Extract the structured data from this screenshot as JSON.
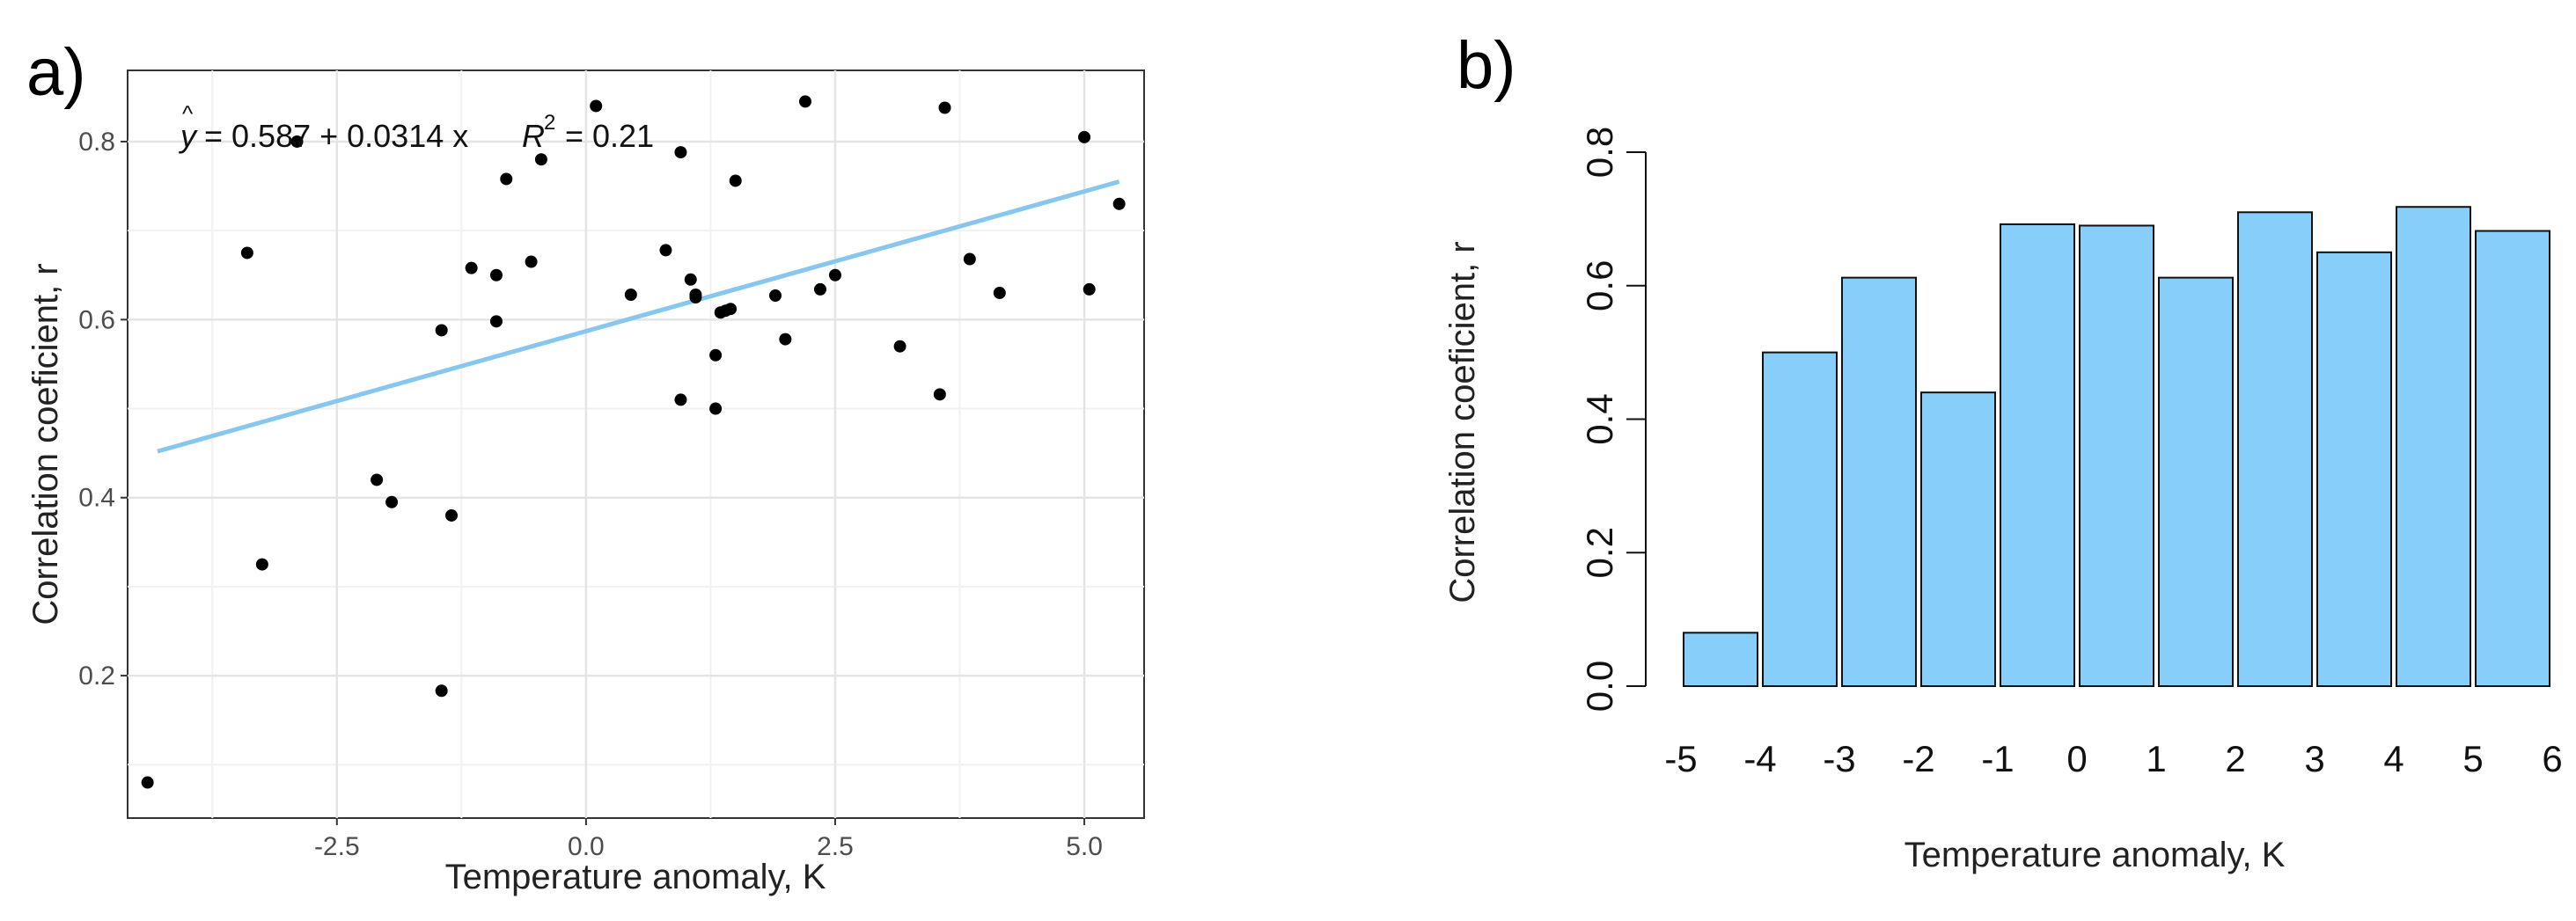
{
  "chart_data": [
    {
      "panel_label": "a)",
      "type": "scatter",
      "xlabel": "Temperature anomaly, K",
      "ylabel": "Correlation coeficient, r",
      "xlim": [
        -4.6,
        5.6
      ],
      "ylim": [
        0.04,
        0.88
      ],
      "xticks": [
        -2.5,
        0.0,
        2.5,
        5.0
      ],
      "xtick_labels": [
        "-2.5",
        "0.0",
        "2.5",
        "5.0"
      ],
      "yticks": [
        0.2,
        0.4,
        0.6,
        0.8
      ],
      "ytick_labels": [
        "0.2",
        "0.4",
        "0.6",
        "0.8"
      ],
      "grid": true,
      "equation": {
        "yhat": "y",
        "rhs": "= 0.587 + 0.0314 x",
        "r2_label": "R",
        "r2_exp": "2",
        "r2_value": "= 0.21"
      },
      "fit_line": {
        "intercept": 0.587,
        "slope": 0.0314,
        "x_range": [
          -4.3,
          5.35
        ],
        "color": "#87c6ef"
      },
      "point_color": "#000000",
      "x": [
        -4.4,
        -3.4,
        -3.25,
        -2.9,
        -2.1,
        -1.95,
        -1.45,
        -1.45,
        -1.35,
        -1.15,
        -0.9,
        -0.9,
        -0.8,
        -0.55,
        -0.45,
        0.1,
        0.45,
        0.8,
        0.95,
        0.95,
        1.05,
        1.1,
        1.1,
        1.3,
        1.3,
        1.35,
        1.4,
        1.45,
        1.5,
        1.9,
        2.0,
        2.2,
        2.35,
        2.5,
        3.15,
        3.55,
        3.6,
        3.85,
        4.15,
        5.0,
        5.05,
        5.35
      ],
      "y": [
        0.08,
        0.675,
        0.325,
        0.8,
        0.42,
        0.395,
        0.588,
        0.183,
        0.38,
        0.658,
        0.65,
        0.598,
        0.758,
        0.665,
        0.78,
        0.84,
        0.628,
        0.678,
        0.51,
        0.788,
        0.645,
        0.625,
        0.628,
        0.5,
        0.56,
        0.608,
        0.61,
        0.612,
        0.756,
        0.627,
        0.578,
        0.845,
        0.634,
        0.65,
        0.57,
        0.516,
        0.838,
        0.668,
        0.63,
        0.805,
        0.634,
        0.73
      ]
    },
    {
      "panel_label": "b)",
      "type": "bar",
      "xlabel": "Temperature anomaly, K",
      "ylabel": "Correlation coeficient, r",
      "ylim": [
        0,
        0.8
      ],
      "yticks": [
        0.0,
        0.2,
        0.4,
        0.6,
        0.8
      ],
      "ytick_labels": [
        "0.0",
        "0.2",
        "0.4",
        "0.6",
        "0.8"
      ],
      "x_tick_labels": [
        "-5",
        "-4",
        "-3",
        "-2",
        "-1",
        "0",
        "1",
        "2",
        "3",
        "4",
        "5",
        "6"
      ],
      "bar_color": "#87cefa",
      "values": [
        0.08,
        0.5,
        0.612,
        0.44,
        0.692,
        0.69,
        0.612,
        0.71,
        0.65,
        0.718,
        0.682
      ]
    }
  ]
}
